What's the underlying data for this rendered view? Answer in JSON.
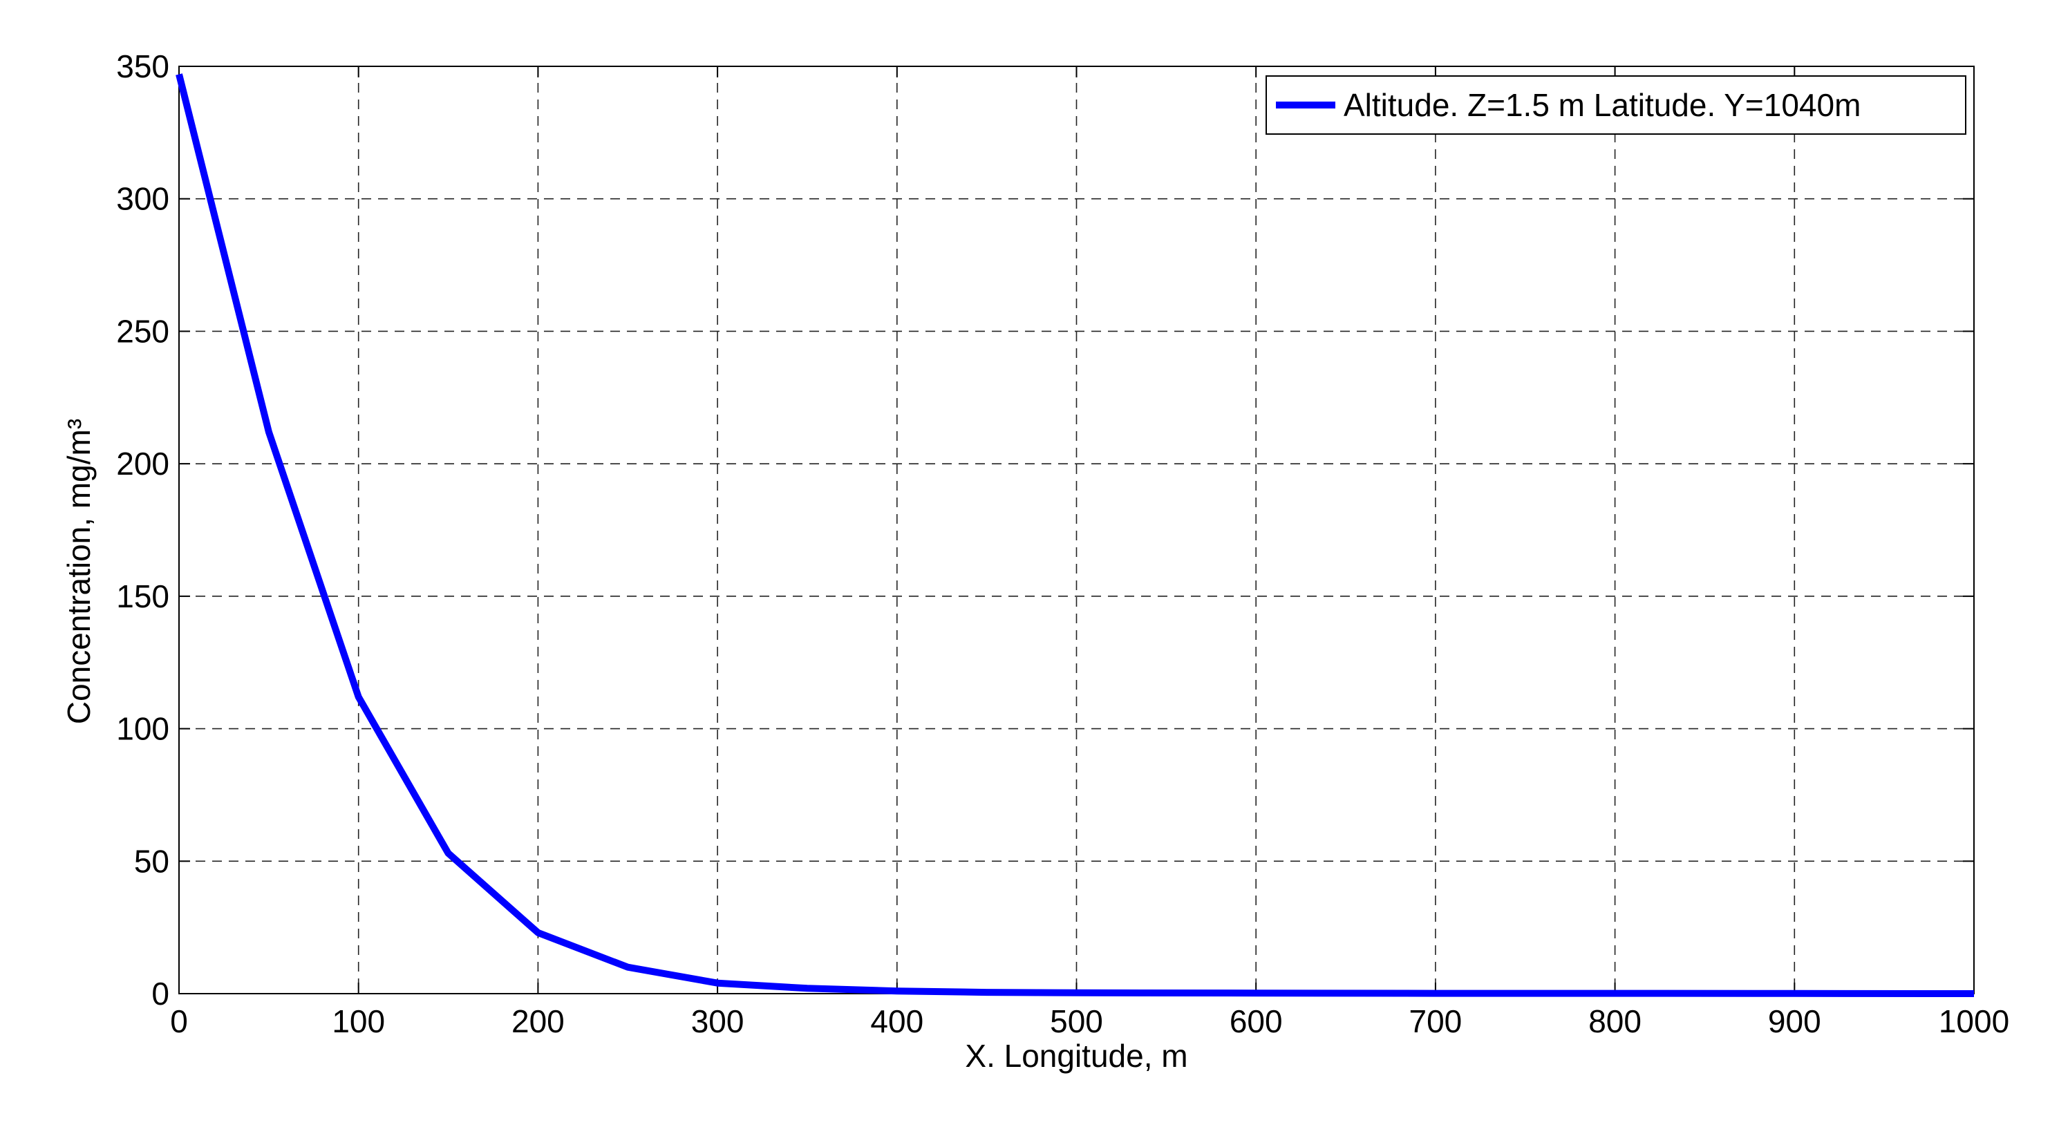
{
  "chart_data": {
    "type": "line",
    "title": "",
    "xlabel": "X. Longitude, m",
    "ylabel": "Concentration, mg/m³",
    "xlim": [
      0,
      1000
    ],
    "ylim": [
      0,
      350
    ],
    "xticks": [
      0,
      100,
      200,
      300,
      400,
      500,
      600,
      700,
      800,
      900,
      1000
    ],
    "yticks": [
      0,
      50,
      100,
      150,
      200,
      250,
      300,
      350
    ],
    "grid": true,
    "grid_style": "dashed",
    "legend_position": "top-right",
    "series": [
      {
        "name": "Altitude. Z=1.5 m Latitude. Y=1040m",
        "color": "#0000ff",
        "x": [
          0,
          50,
          100,
          150,
          200,
          250,
          300,
          350,
          400,
          450,
          500,
          600,
          700,
          800,
          900,
          1000
        ],
        "y": [
          347,
          212,
          112,
          53,
          23,
          10,
          4,
          2,
          1,
          0.5,
          0.3,
          0.2,
          0.1,
          0.1,
          0.05,
          0
        ]
      }
    ]
  }
}
